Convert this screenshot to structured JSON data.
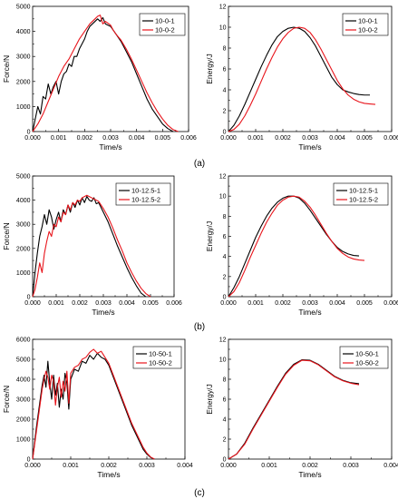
{
  "colors": {
    "series1": "#000000",
    "series2": "#e8141b",
    "axis": "#000000"
  },
  "captions": [
    "(a)",
    "(b)",
    "(c)"
  ],
  "chart_data": [
    {
      "type": "line",
      "xlabel": "Time/s",
      "ylabel": "Force/N",
      "xlim": [
        0,
        0.006
      ],
      "ylim": [
        0,
        5000
      ],
      "xticks": [
        "0.000",
        "0.001",
        "0.002",
        "0.003",
        "0.004",
        "0.005",
        "0.006"
      ],
      "yticks": [
        "0",
        "1000",
        "2000",
        "3000",
        "4000",
        "5000"
      ],
      "legend_position": "top-right",
      "series": [
        {
          "name": "10-0-1",
          "x": [
            0,
            0.0002,
            0.0003,
            0.0004,
            0.0005,
            0.0006,
            0.0007,
            0.0008,
            0.0009,
            0.001,
            0.0011,
            0.0012,
            0.0013,
            0.0014,
            0.0015,
            0.0016,
            0.0017,
            0.0018,
            0.0019,
            0.002,
            0.0021,
            0.0022,
            0.0023,
            0.0024,
            0.0025,
            0.0026,
            0.0027,
            0.0028,
            0.003,
            0.0032,
            0.0034,
            0.0036,
            0.0038,
            0.004,
            0.0042,
            0.0044,
            0.0046,
            0.0048,
            0.005,
            0.0052,
            0.0054
          ],
          "y": [
            0,
            1000,
            700,
            1400,
            1300,
            1900,
            1500,
            1800,
            2000,
            1500,
            2000,
            2300,
            2400,
            2700,
            2600,
            3000,
            3000,
            3300,
            3500,
            3700,
            4000,
            4200,
            4300,
            4400,
            4500,
            4400,
            4550,
            4300,
            4200,
            3900,
            3600,
            3200,
            2800,
            2300,
            1800,
            1300,
            900,
            600,
            300,
            120,
            0
          ]
        },
        {
          "name": "10-0-2",
          "x": [
            0,
            0.0002,
            0.0004,
            0.0006,
            0.0008,
            0.001,
            0.0012,
            0.0014,
            0.0016,
            0.0018,
            0.002,
            0.0022,
            0.0024,
            0.0025,
            0.0026,
            0.0027,
            0.0028,
            0.003,
            0.0031,
            0.0032,
            0.0034,
            0.0036,
            0.0038,
            0.004,
            0.0042,
            0.0044,
            0.0046,
            0.0048,
            0.005,
            0.0052,
            0.0054,
            0.0056
          ],
          "y": [
            0,
            300,
            700,
            1200,
            1700,
            2200,
            2600,
            2900,
            3300,
            3700,
            4000,
            4300,
            4500,
            4600,
            4650,
            4300,
            4400,
            4250,
            4050,
            3900,
            3650,
            3300,
            2900,
            2450,
            2000,
            1550,
            1150,
            800,
            500,
            250,
            80,
            0
          ]
        }
      ]
    },
    {
      "type": "line",
      "xlabel": "Time/s",
      "ylabel": "Energy/J",
      "xlim": [
        0,
        0.006
      ],
      "ylim": [
        0,
        12
      ],
      "xticks": [
        "0.000",
        "0.001",
        "0.002",
        "0.003",
        "0.004",
        "0.005",
        "0.006"
      ],
      "yticks": [
        "0",
        "2",
        "4",
        "6",
        "8",
        "10",
        "12"
      ],
      "legend_position": "top-right",
      "series": [
        {
          "name": "10-0-1",
          "x": [
            0,
            0.0002,
            0.0004,
            0.0006,
            0.0008,
            0.001,
            0.0012,
            0.0014,
            0.0016,
            0.0018,
            0.002,
            0.0022,
            0.0024,
            0.0026,
            0.0028,
            0.003,
            0.0032,
            0.0034,
            0.0036,
            0.0038,
            0.004,
            0.0042,
            0.0044,
            0.0046,
            0.0048,
            0.005,
            0.0052
          ],
          "y": [
            0,
            0.6,
            1.5,
            2.6,
            3.8,
            5.0,
            6.2,
            7.3,
            8.3,
            9.1,
            9.6,
            9.9,
            10.0,
            9.9,
            9.6,
            9.0,
            8.2,
            7.2,
            6.2,
            5.2,
            4.5,
            4.0,
            3.8,
            3.65,
            3.55,
            3.5,
            3.5
          ]
        },
        {
          "name": "10-0-2",
          "x": [
            0,
            0.0002,
            0.0004,
            0.0006,
            0.0008,
            0.001,
            0.0012,
            0.0014,
            0.0016,
            0.0018,
            0.002,
            0.0022,
            0.0024,
            0.0026,
            0.0028,
            0.003,
            0.0032,
            0.0034,
            0.0036,
            0.0038,
            0.004,
            0.0042,
            0.0044,
            0.0046,
            0.0048,
            0.005,
            0.0052,
            0.0054
          ],
          "y": [
            0,
            0.2,
            0.7,
            1.5,
            2.5,
            3.6,
            4.8,
            6.0,
            7.1,
            8.1,
            8.9,
            9.5,
            9.9,
            10.0,
            9.9,
            9.5,
            8.8,
            7.9,
            6.9,
            5.9,
            4.9,
            4.1,
            3.5,
            3.1,
            2.85,
            2.7,
            2.65,
            2.6
          ]
        }
      ]
    },
    {
      "type": "line",
      "xlabel": "Time/s",
      "ylabel": "Force/N",
      "xlim": [
        0,
        0.006
      ],
      "ylim": [
        0,
        5000
      ],
      "xticks": [
        "0.000",
        "0.001",
        "0.002",
        "0.003",
        "0.004",
        "0.005",
        "0.006"
      ],
      "yticks": [
        "0",
        "1000",
        "2000",
        "3000",
        "4000",
        "5000"
      ],
      "legend_position": "top-right",
      "series": [
        {
          "name": "10-12.5-1",
          "x": [
            0,
            0.0001,
            0.0002,
            0.0003,
            0.0004,
            0.0005,
            0.0006,
            0.0007,
            0.0008,
            0.0009,
            0.001,
            0.0011,
            0.0012,
            0.0013,
            0.0014,
            0.0015,
            0.0016,
            0.0017,
            0.0018,
            0.0019,
            0.002,
            0.0021,
            0.0022,
            0.0023,
            0.0024,
            0.0025,
            0.0026,
            0.0027,
            0.0028,
            0.003,
            0.0032,
            0.0034,
            0.0036,
            0.0038,
            0.004,
            0.0042,
            0.0044,
            0.0046,
            0.0048
          ],
          "y": [
            0,
            1000,
            1800,
            2500,
            2900,
            3400,
            3000,
            3600,
            3300,
            2800,
            3200,
            3500,
            3100,
            3600,
            3400,
            3800,
            3500,
            3900,
            3700,
            4000,
            3800,
            4100,
            3900,
            4150,
            4000,
            3950,
            4100,
            3850,
            3900,
            3500,
            3100,
            2600,
            2100,
            1650,
            1200,
            800,
            450,
            150,
            0
          ]
        },
        {
          "name": "10-12.5-2",
          "x": [
            0,
            0.0001,
            0.0002,
            0.0003,
            0.0004,
            0.0005,
            0.0006,
            0.0007,
            0.0008,
            0.0009,
            0.001,
            0.0011,
            0.0012,
            0.0013,
            0.0014,
            0.0015,
            0.0016,
            0.0017,
            0.0018,
            0.0019,
            0.002,
            0.0021,
            0.0022,
            0.0023,
            0.0024,
            0.0025,
            0.0026,
            0.0027,
            0.0028,
            0.003,
            0.0032,
            0.0034,
            0.0036,
            0.0038,
            0.004,
            0.0042,
            0.0044,
            0.0046,
            0.0048,
            0.005
          ],
          "y": [
            0,
            300,
            800,
            1400,
            1000,
            1800,
            2300,
            2700,
            2500,
            3000,
            2900,
            3300,
            3100,
            3500,
            3400,
            3800,
            3600,
            3900,
            3800,
            4000,
            3950,
            4100,
            4150,
            4200,
            4150,
            4100,
            4050,
            4000,
            3950,
            3650,
            3300,
            2850,
            2350,
            1900,
            1400,
            1000,
            650,
            350,
            130,
            0
          ]
        }
      ]
    },
    {
      "type": "line",
      "xlabel": "Time/s",
      "ylabel": "Energy/J",
      "xlim": [
        0,
        0.006
      ],
      "ylim": [
        0,
        12
      ],
      "xticks": [
        "0.000",
        "0.001",
        "0.002",
        "0.003",
        "0.004",
        "0.005",
        "0.006"
      ],
      "yticks": [
        "0",
        "2",
        "4",
        "6",
        "8",
        "10",
        "12"
      ],
      "legend_position": "top-right",
      "series": [
        {
          "name": "10-12.5-1",
          "x": [
            0,
            0.0002,
            0.0004,
            0.0006,
            0.0008,
            0.001,
            0.0012,
            0.0014,
            0.0016,
            0.0018,
            0.002,
            0.0022,
            0.0024,
            0.0026,
            0.0028,
            0.003,
            0.0032,
            0.0034,
            0.0036,
            0.0038,
            0.004,
            0.0042,
            0.0044,
            0.0046,
            0.0048
          ],
          "y": [
            0,
            0.9,
            2.0,
            3.3,
            4.6,
            5.9,
            7.0,
            8.0,
            8.8,
            9.4,
            9.8,
            10.0,
            10.0,
            9.8,
            9.3,
            8.6,
            7.8,
            7.0,
            6.2,
            5.5,
            4.9,
            4.5,
            4.25,
            4.1,
            4.05
          ]
        },
        {
          "name": "10-12.5-2",
          "x": [
            0,
            0.0002,
            0.0004,
            0.0006,
            0.0008,
            0.001,
            0.0012,
            0.0014,
            0.0016,
            0.0018,
            0.002,
            0.0022,
            0.0024,
            0.0026,
            0.0028,
            0.003,
            0.0032,
            0.0034,
            0.0036,
            0.0038,
            0.004,
            0.0042,
            0.0044,
            0.0046,
            0.0048,
            0.005
          ],
          "y": [
            0,
            0.5,
            1.4,
            2.6,
            3.9,
            5.1,
            6.3,
            7.4,
            8.3,
            9.1,
            9.6,
            9.9,
            10.0,
            9.9,
            9.5,
            8.9,
            8.1,
            7.2,
            6.3,
            5.5,
            4.8,
            4.3,
            3.95,
            3.75,
            3.65,
            3.6
          ]
        }
      ]
    },
    {
      "type": "line",
      "xlabel": "Time/s",
      "ylabel": "Force/N",
      "xlim": [
        0,
        0.004
      ],
      "ylim": [
        0,
        6000
      ],
      "xticks": [
        "0.000",
        "0.001",
        "0.002",
        "0.003",
        "0.004"
      ],
      "yticks": [
        "0",
        "1000",
        "2000",
        "3000",
        "4000",
        "5000",
        "6000"
      ],
      "legend_position": "top-right",
      "series": [
        {
          "name": "10-50-1",
          "x": [
            0,
            0.0001,
            0.0002,
            0.00025,
            0.0003,
            0.00035,
            0.0004,
            0.00045,
            0.0005,
            0.00055,
            0.0006,
            0.00065,
            0.0007,
            0.00075,
            0.0008,
            0.00085,
            0.0009,
            0.00095,
            0.001,
            0.0011,
            0.0012,
            0.0013,
            0.0014,
            0.0015,
            0.0016,
            0.0017,
            0.0018,
            0.0019,
            0.002,
            0.0021,
            0.0022,
            0.0023,
            0.0024,
            0.0025,
            0.0026,
            0.0027,
            0.0028,
            0.0029,
            0.003,
            0.0031,
            0.0032
          ],
          "y": [
            0,
            1600,
            3000,
            3700,
            4200,
            3600,
            4900,
            3800,
            3000,
            4200,
            3200,
            3800,
            2600,
            3500,
            3000,
            4300,
            3800,
            2500,
            4000,
            4500,
            4400,
            4900,
            4800,
            5200,
            5000,
            5300,
            5100,
            5000,
            4700,
            4200,
            3700,
            3200,
            2700,
            2200,
            1700,
            1300,
            900,
            500,
            250,
            80,
            0
          ]
        },
        {
          "name": "10-50-2",
          "x": [
            0,
            0.0001,
            0.0002,
            0.00025,
            0.0003,
            0.00035,
            0.0004,
            0.00045,
            0.0005,
            0.00055,
            0.0006,
            0.00065,
            0.0007,
            0.00075,
            0.0008,
            0.00085,
            0.0009,
            0.00095,
            0.001,
            0.0011,
            0.0012,
            0.0013,
            0.0014,
            0.0015,
            0.0016,
            0.0017,
            0.0018,
            0.0019,
            0.002,
            0.0021,
            0.0022,
            0.0023,
            0.0024,
            0.0025,
            0.0026,
            0.0027,
            0.0028,
            0.0029,
            0.003,
            0.0031,
            0.0032
          ],
          "y": [
            0,
            1400,
            2800,
            3500,
            4000,
            4400,
            4100,
            3500,
            4200,
            3900,
            2700,
            3600,
            4100,
            3100,
            3900,
            3400,
            4400,
            2800,
            4300,
            4600,
            4700,
            5000,
            5100,
            5350,
            5500,
            5300,
            5400,
            5100,
            4800,
            4300,
            3800,
            3300,
            2800,
            2300,
            1800,
            1400,
            1000,
            600,
            300,
            100,
            0
          ]
        }
      ]
    },
    {
      "type": "line",
      "xlabel": "Time/s",
      "ylabel": "Energy/J",
      "xlim": [
        0,
        0.004
      ],
      "ylim": [
        0,
        12
      ],
      "xticks": [
        "0.000",
        "0.001",
        "0.002",
        "0.003",
        "0.004"
      ],
      "yticks": [
        "0",
        "2",
        "4",
        "6",
        "8",
        "10",
        "12"
      ],
      "legend_position": "top-right",
      "series": [
        {
          "name": "10-50-1",
          "x": [
            0,
            0.0002,
            0.0004,
            0.0006,
            0.0008,
            0.001,
            0.0012,
            0.0014,
            0.0016,
            0.0018,
            0.002,
            0.0022,
            0.0024,
            0.0026,
            0.0028,
            0.003,
            0.0032
          ],
          "y": [
            0,
            0.5,
            1.6,
            3.1,
            4.5,
            5.9,
            7.3,
            8.6,
            9.5,
            9.95,
            9.9,
            9.5,
            8.9,
            8.3,
            7.9,
            7.65,
            7.55
          ]
        },
        {
          "name": "10-50-2",
          "x": [
            0,
            0.0002,
            0.0004,
            0.0006,
            0.0008,
            0.001,
            0.0012,
            0.0014,
            0.0016,
            0.0018,
            0.002,
            0.0022,
            0.0024,
            0.0026,
            0.0028,
            0.003,
            0.0032
          ],
          "y": [
            0,
            0.5,
            1.5,
            3.0,
            4.4,
            5.8,
            7.2,
            8.5,
            9.4,
            9.9,
            9.85,
            9.45,
            8.85,
            8.25,
            7.85,
            7.6,
            7.45
          ]
        }
      ]
    }
  ]
}
